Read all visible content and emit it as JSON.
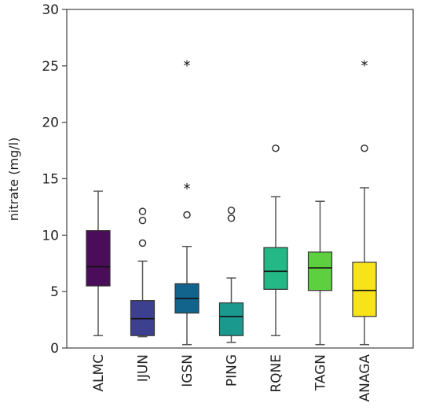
{
  "chart_data": {
    "type": "boxplot",
    "ylabel": "nitrate (mg/l)",
    "ylim": [
      0,
      30
    ],
    "yticks": [
      0,
      5,
      10,
      15,
      20,
      25,
      30
    ],
    "grid": false,
    "categories": [
      "ALMC",
      "IJUN",
      "IGSN",
      "PING",
      "RQNE",
      "TAGN",
      "ANAGA"
    ],
    "boxes": [
      {
        "category": "ALMC",
        "whisker_low": 1.1,
        "q1": 5.5,
        "median": 7.2,
        "q3": 10.4,
        "whisker_high": 13.9,
        "outliers": [],
        "extremes": [],
        "color": "#4b0c5a"
      },
      {
        "category": "IJUN",
        "whisker_low": 1.0,
        "q1": 1.1,
        "median": 2.6,
        "q3": 4.2,
        "whisker_high": 7.7,
        "outliers": [
          9.3,
          11.3,
          12.1
        ],
        "extremes": [],
        "color": "#3d3f8f"
      },
      {
        "category": "IGSN",
        "whisker_low": 0.3,
        "q1": 3.1,
        "median": 4.4,
        "q3": 5.7,
        "whisker_high": 9.0,
        "outliers": [
          11.8
        ],
        "extremes": [
          14.2,
          25.1
        ],
        "color": "#12648c"
      },
      {
        "category": "PING",
        "whisker_low": 0.5,
        "q1": 1.1,
        "median": 2.8,
        "q3": 4.0,
        "whisker_high": 6.2,
        "outliers": [
          11.5,
          12.2
        ],
        "extremes": [],
        "color": "#1a9a8f"
      },
      {
        "category": "RQNE",
        "whisker_low": 1.1,
        "q1": 5.2,
        "median": 6.8,
        "q3": 8.9,
        "whisker_high": 13.4,
        "outliers": [
          17.7
        ],
        "extremes": [],
        "color": "#23b886"
      },
      {
        "category": "TAGN",
        "whisker_low": 0.3,
        "q1": 5.1,
        "median": 7.1,
        "q3": 8.5,
        "whisker_high": 13.0,
        "outliers": [],
        "extremes": [],
        "color": "#5ecf3f"
      },
      {
        "category": "ANAGA",
        "whisker_low": 0.3,
        "q1": 2.8,
        "median": 5.1,
        "q3": 7.6,
        "whisker_high": 14.2,
        "outliers": [
          17.7
        ],
        "extremes": [
          25.1
        ],
        "color": "#f8e21a"
      }
    ]
  }
}
